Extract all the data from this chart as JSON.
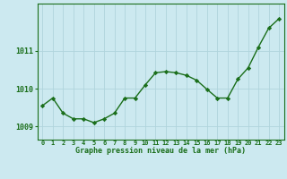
{
  "x": [
    0,
    1,
    2,
    3,
    4,
    5,
    6,
    7,
    8,
    9,
    10,
    11,
    12,
    13,
    14,
    15,
    16,
    17,
    18,
    19,
    20,
    21,
    22,
    23
  ],
  "y": [
    1009.55,
    1009.75,
    1009.35,
    1009.2,
    1009.2,
    1009.1,
    1009.2,
    1009.35,
    1009.75,
    1009.75,
    1010.1,
    1010.42,
    1010.45,
    1010.42,
    1010.35,
    1010.22,
    1009.98,
    1009.75,
    1009.75,
    1010.25,
    1010.55,
    1011.1,
    1011.6,
    1011.85
  ],
  "line_color": "#1a6e1a",
  "marker": "D",
  "marker_size": 2.2,
  "line_width": 1.0,
  "bg_color": "#cce9f0",
  "grid_color": "#b0d4dc",
  "axis_label_color": "#1a6e1a",
  "tick_color": "#1a6e1a",
  "title": "Graphe pression niveau de la mer (hPa)",
  "ylabel_ticks": [
    1009,
    1010,
    1011
  ],
  "xlim": [
    -0.5,
    23.5
  ],
  "ylim": [
    1008.65,
    1012.25
  ],
  "title_fontsize": 6.0,
  "xtick_fontsize": 5.0,
  "ytick_fontsize": 6.0
}
